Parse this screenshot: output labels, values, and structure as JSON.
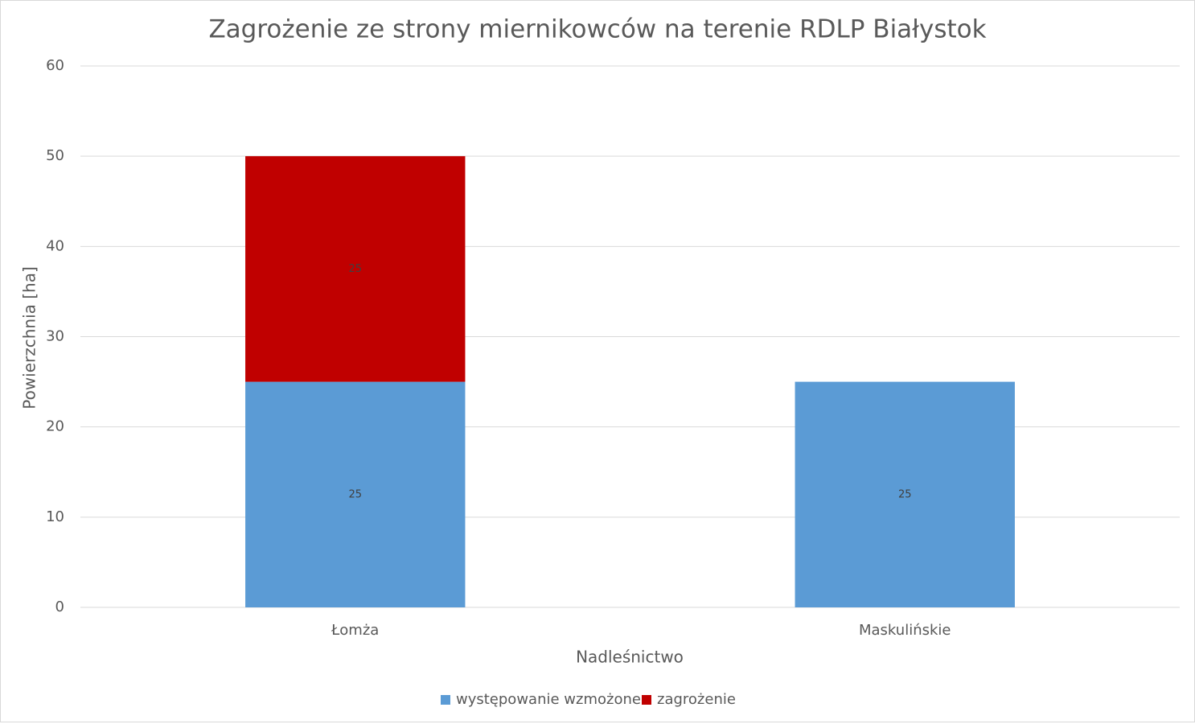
{
  "chart_data": {
    "type": "stacked_bar",
    "title": "Zagrożenie ze strony miernikowców na terenie RDLP Białystok",
    "x_label": "Nadleśnictwo",
    "y_label": "Powierzchnia [ha]",
    "categories": [
      "Łomża",
      "Maskulińskie"
    ],
    "series": [
      {
        "name": "występowanie wzmożone",
        "color": "#5b9bd5",
        "values": [
          25,
          25
        ]
      },
      {
        "name": "zagrożenie",
        "color": "#c00000",
        "values": [
          25,
          null
        ]
      }
    ],
    "ylim": [
      0,
      60
    ],
    "yticks": [
      0,
      10,
      20,
      30,
      40,
      50,
      60
    ],
    "grid": true,
    "legend": "bottom",
    "data_labels": true
  }
}
